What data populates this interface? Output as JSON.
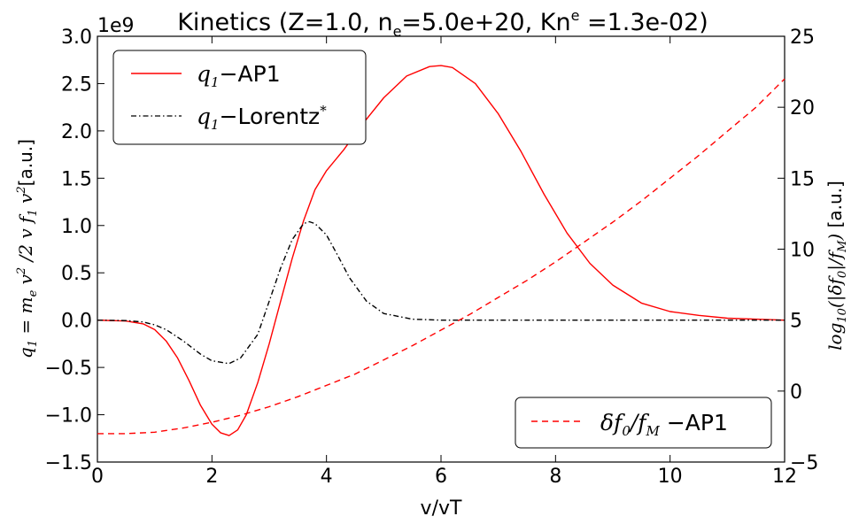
{
  "chart_data": {
    "type": "line",
    "title": "Kinetics (Z=1.0, n_e=5.0e+20, Kn^e =1.3e-02)",
    "title_parts": {
      "prefix": "Kinetics (Z=1.0, n",
      "sub1": "e",
      "mid": "=5.0e+20, Kn",
      "sup1": "e",
      "suffix": " =1.3e-02)"
    },
    "xlabel": "v/vT",
    "ylabel_left": "q_1 = m_e v^2 / 2 v f_1 v^2 [a.u.]",
    "ylabel_left_unit": "[a.u.]",
    "ylabel_right": "log10(|δf_0|/f_M) [a.u.]",
    "ylabel_right_unit": "[a.u.]",
    "left_offset_text": "1e9",
    "xlim": [
      0,
      12
    ],
    "ylim_left": [
      -1.5,
      3.0
    ],
    "ylim_right": [
      -5,
      25
    ],
    "xticks": [
      "0",
      "2",
      "4",
      "6",
      "8",
      "10",
      "12"
    ],
    "yticks_left": [
      "−1.5",
      "−1.0",
      "−0.5",
      "0.0",
      "0.5",
      "1.0",
      "1.5",
      "2.0",
      "2.5",
      "3.0"
    ],
    "yticks_right": [
      "−5",
      "0",
      "5",
      "10",
      "15",
      "20",
      "25"
    ],
    "legend_upper_left": [
      {
        "label_sym": "q",
        "label_sub": "1",
        "label_text": "−AP1",
        "color": "#ff0000",
        "style": "solid"
      },
      {
        "label_sym": "q",
        "label_sub": "1",
        "label_text": "−Lorentz",
        "label_sup": "*",
        "color": "#000000",
        "style": "dashdot"
      }
    ],
    "legend_lower_right": [
      {
        "label_sym": "δf",
        "label_sub": "0",
        "label_mid": "/f",
        "label_sub2": "M",
        "label_text": " −AP1",
        "color": "#ff0000",
        "style": "dashed"
      }
    ],
    "series": [
      {
        "name": "q1-AP1",
        "axis": "left",
        "color": "#ff0000",
        "style": "solid",
        "x": [
          0,
          0.5,
          0.8,
          1.0,
          1.2,
          1.4,
          1.6,
          1.8,
          2.0,
          2.15,
          2.3,
          2.45,
          2.6,
          2.8,
          3.0,
          3.2,
          3.4,
          3.6,
          3.8,
          4.0,
          4.3,
          4.6,
          5.0,
          5.4,
          5.8,
          6.0,
          6.2,
          6.6,
          7.0,
          7.4,
          7.8,
          8.2,
          8.6,
          9.0,
          9.5,
          10.0,
          10.5,
          11.0,
          11.5,
          12.0
        ],
        "y": [
          0,
          -0.01,
          -0.04,
          -0.1,
          -0.22,
          -0.4,
          -0.64,
          -0.9,
          -1.1,
          -1.19,
          -1.22,
          -1.16,
          -1.0,
          -0.66,
          -0.25,
          0.2,
          0.65,
          1.05,
          1.38,
          1.58,
          1.8,
          2.05,
          2.35,
          2.58,
          2.68,
          2.69,
          2.67,
          2.5,
          2.18,
          1.78,
          1.33,
          0.92,
          0.6,
          0.37,
          0.18,
          0.09,
          0.05,
          0.02,
          0.01,
          0.0
        ]
      },
      {
        "name": "q1-Lorentz*",
        "axis": "left",
        "color": "#000000",
        "style": "dashdot",
        "x": [
          0,
          0.5,
          0.8,
          1.0,
          1.2,
          1.5,
          1.8,
          2.0,
          2.3,
          2.5,
          2.8,
          3.0,
          3.2,
          3.4,
          3.6,
          3.7,
          3.8,
          4.0,
          4.2,
          4.4,
          4.7,
          5.0,
          5.5,
          6.0,
          7.0,
          8.0,
          10.0,
          12.0
        ],
        "y": [
          0,
          -0.005,
          -0.02,
          -0.05,
          -0.1,
          -0.22,
          -0.36,
          -0.43,
          -0.46,
          -0.4,
          -0.15,
          0.2,
          0.55,
          0.85,
          1.02,
          1.04,
          1.02,
          0.9,
          0.68,
          0.45,
          0.2,
          0.07,
          0.01,
          0.0,
          0.0,
          0.0,
          0.0,
          0.0
        ]
      },
      {
        "name": "δf0/fM-AP1",
        "axis": "right",
        "color": "#ff0000",
        "style": "dashed",
        "x": [
          0,
          0.5,
          1.0,
          1.5,
          2.0,
          2.5,
          3.0,
          3.5,
          4.0,
          4.5,
          5.0,
          5.5,
          6.0,
          6.5,
          7.0,
          7.5,
          8.0,
          8.5,
          9.0,
          9.5,
          10.0,
          10.5,
          11.0,
          11.5,
          12.0
        ],
        "y": [
          -3.0,
          -3.0,
          -2.9,
          -2.6,
          -2.2,
          -1.7,
          -1.1,
          -0.4,
          0.4,
          1.2,
          2.2,
          3.2,
          4.3,
          5.4,
          6.6,
          7.8,
          9.1,
          10.5,
          11.9,
          13.4,
          15.0,
          16.6,
          18.3,
          20.0,
          22.0
        ]
      }
    ]
  }
}
